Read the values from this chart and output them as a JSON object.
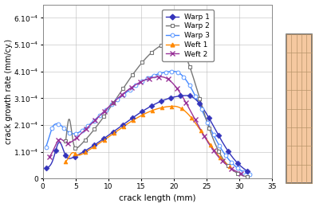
{
  "xlabel": "crack length (mm)",
  "ylabel": "crack growth rate (mm/cy.)",
  "xlim": [
    0,
    35
  ],
  "ylim": [
    0,
    0.00065
  ],
  "yticks": [
    0,
    0.0001,
    0.0002,
    0.0003,
    0.0004,
    0.0005,
    0.0006
  ],
  "xticks": [
    0,
    5,
    10,
    15,
    20,
    25,
    30,
    35
  ],
  "series": {
    "Warp1": {
      "color": "#3333bb",
      "marker": "D",
      "markersize": 3.5,
      "linewidth": 1.0
    },
    "Warp2": {
      "color": "#777777",
      "marker": "s",
      "markersize": 3.5,
      "linewidth": 1.0
    },
    "Warp3": {
      "color": "#4488ff",
      "marker": "o",
      "markersize": 3.5,
      "linewidth": 1.0
    },
    "Weft1": {
      "color": "#ff8800",
      "marker": "^",
      "markersize": 3.5,
      "linewidth": 1.0
    },
    "Weft2": {
      "color": "#993399",
      "marker": "x",
      "markersize": 4.5,
      "linewidth": 1.0
    }
  },
  "background_color": "#ffffff",
  "grid_color": "#bbbbbb"
}
